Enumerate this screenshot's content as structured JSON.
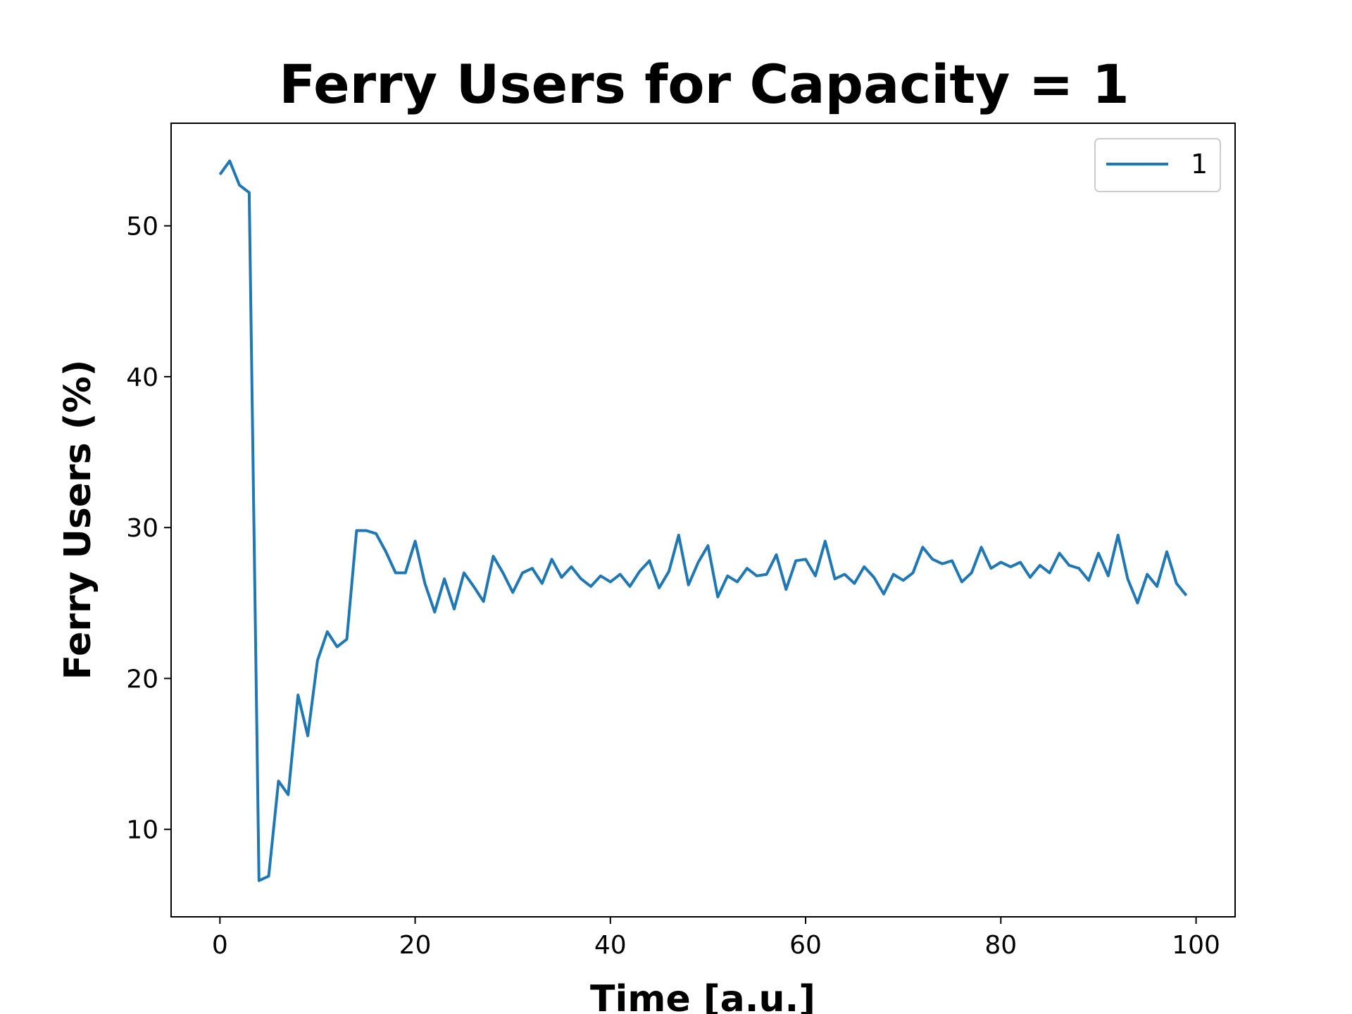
{
  "chart_data": {
    "type": "line",
    "title": "Ferry Users for Capacity = 1",
    "xlabel": "Time [a.u.]",
    "ylabel": "Ferry Users (%)",
    "xlim": [
      -5,
      104
    ],
    "ylim": [
      4.2,
      56.8
    ],
    "xticks": [
      0,
      20,
      40,
      60,
      80,
      100
    ],
    "yticks": [
      10,
      20,
      30,
      40,
      50
    ],
    "grid": false,
    "legend": "top-right",
    "series": [
      {
        "name": "1",
        "color": "#1f77b4",
        "x": [
          0,
          1,
          2,
          3,
          4,
          5,
          6,
          7,
          8,
          9,
          10,
          11,
          12,
          13,
          14,
          15,
          16,
          17,
          18,
          19,
          20,
          21,
          22,
          23,
          24,
          25,
          26,
          27,
          28,
          29,
          30,
          31,
          32,
          33,
          34,
          35,
          36,
          37,
          38,
          39,
          40,
          41,
          42,
          43,
          44,
          45,
          46,
          47,
          48,
          49,
          50,
          51,
          52,
          53,
          54,
          55,
          56,
          57,
          58,
          59,
          60,
          61,
          62,
          63,
          64,
          65,
          66,
          67,
          68,
          69,
          70,
          71,
          72,
          73,
          74,
          75,
          76,
          77,
          78,
          79,
          80,
          81,
          82,
          83,
          84,
          85,
          86,
          87,
          88,
          89,
          90,
          91,
          92,
          93,
          94,
          95,
          96,
          97,
          98,
          99
        ],
        "values": [
          53.4,
          54.3,
          52.7,
          52.2,
          6.6,
          6.9,
          13.2,
          12.3,
          18.9,
          16.2,
          21.2,
          23.1,
          22.1,
          22.6,
          29.8,
          29.8,
          29.6,
          28.4,
          27.0,
          27.0,
          29.1,
          26.3,
          24.4,
          26.6,
          24.6,
          27.0,
          26.1,
          25.1,
          28.1,
          27.0,
          25.7,
          27.0,
          27.3,
          26.3,
          27.9,
          26.7,
          27.4,
          26.6,
          26.1,
          26.8,
          26.4,
          26.9,
          26.1,
          27.1,
          27.8,
          26.0,
          27.1,
          29.5,
          26.2,
          27.7,
          28.8,
          25.4,
          26.8,
          26.4,
          27.3,
          26.8,
          26.9,
          28.2,
          25.9,
          27.8,
          27.9,
          26.8,
          29.1,
          26.6,
          26.9,
          26.3,
          27.4,
          26.7,
          25.6,
          26.9,
          26.5,
          27.0,
          28.7,
          27.9,
          27.6,
          27.8,
          26.4,
          27.0,
          28.7,
          27.3,
          27.7,
          27.4,
          27.7,
          26.7,
          27.5,
          27.0,
          28.3,
          27.5,
          27.3,
          26.5,
          28.3,
          26.8,
          29.5,
          26.6,
          25.0,
          26.9,
          26.1,
          28.4,
          26.3,
          25.5
        ]
      }
    ]
  }
}
